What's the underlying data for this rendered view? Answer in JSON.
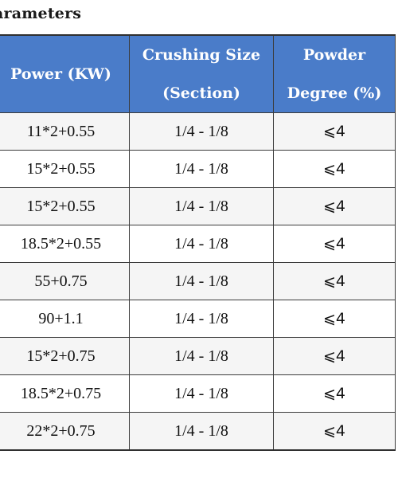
{
  "title": "arameters",
  "table": {
    "headers": {
      "power": "Power (KW)",
      "crushing_size_line1": "Crushing Size",
      "crushing_size_line2": "(Section)",
      "powder_line1": "Powder",
      "powder_line2": "Degree (%)"
    },
    "rows": [
      {
        "power": "11*2+0.55",
        "size": "1/4 - 1/8",
        "powder": "⩽4"
      },
      {
        "power": "15*2+0.55",
        "size": "1/4 - 1/8",
        "powder": "⩽4"
      },
      {
        "power": "15*2+0.55",
        "size": "1/4 - 1/8",
        "powder": "⩽4"
      },
      {
        "power": "18.5*2+0.55",
        "size": "1/4 - 1/8",
        "powder": "⩽4"
      },
      {
        "power": "55+0.75",
        "size": "1/4 - 1/8",
        "powder": "⩽4"
      },
      {
        "power": "90+1.1",
        "size": "1/4 - 1/8",
        "powder": "⩽4"
      },
      {
        "power": "15*2+0.75",
        "size": "1/4 - 1/8",
        "powder": "⩽4"
      },
      {
        "power": "18.5*2+0.75",
        "size": "1/4 - 1/8",
        "powder": "⩽4"
      },
      {
        "power": "22*2+0.75",
        "size": "1/4 - 1/8",
        "powder": "⩽4"
      }
    ]
  },
  "colors": {
    "header_bg": "#4a7cc9",
    "header_text": "#ffffff",
    "row_alt_bg": "#f5f5f5"
  }
}
